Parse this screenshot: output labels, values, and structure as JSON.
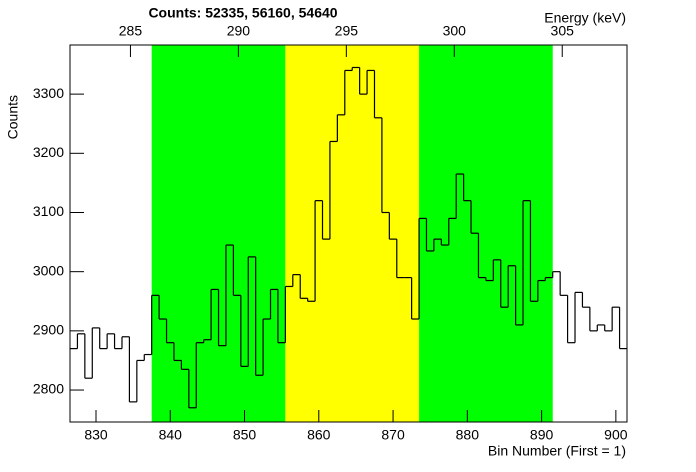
{
  "chart_data": {
    "type": "histogram",
    "title": "Counts:   52335,   56160,   54640",
    "ylabel": "Counts",
    "xlabel": "Bin Number (First = 1)",
    "x2label": "Energy (keV)",
    "bins": [
      826.5,
      827.5,
      828.5,
      829.5,
      830.5,
      831.5,
      832.5,
      833.5,
      834.5,
      835.5,
      836.5,
      837.5,
      838.5,
      839.5,
      840.5,
      841.5,
      842.5,
      843.5,
      844.5,
      845.5,
      846.5,
      847.5,
      848.5,
      849.5,
      850.5,
      851.5,
      852.5,
      853.5,
      854.5,
      855.5,
      856.5,
      857.5,
      858.5,
      859.5,
      860.5,
      861.5,
      862.5,
      863.5,
      864.5,
      865.5,
      866.5,
      867.5,
      868.5,
      869.5,
      870.5,
      871.5,
      872.5,
      873.5,
      874.5,
      875.5,
      876.5,
      877.5,
      878.5,
      879.5,
      880.5,
      881.5,
      882.5,
      883.5,
      884.5,
      885.5,
      886.5,
      887.5,
      888.5,
      889.5,
      890.5,
      891.5,
      892.5,
      893.5,
      894.5,
      895.5,
      896.5,
      897.5,
      898.5,
      899.5,
      900.5,
      901.5
    ],
    "values": [
      2870,
      2895,
      2820,
      2905,
      2870,
      2895,
      2870,
      2890,
      2780,
      2850,
      2860,
      2960,
      2920,
      2880,
      2850,
      2835,
      2770,
      2880,
      2885,
      2970,
      2875,
      3045,
      2960,
      2840,
      3025,
      2825,
      2920,
      2970,
      2880,
      2975,
      2995,
      2955,
      2950,
      3120,
      3055,
      3220,
      3265,
      3340,
      3345,
      3300,
      3340,
      3260,
      3100,
      3055,
      2990,
      2990,
      2920,
      3090,
      3035,
      3055,
      3045,
      3090,
      3165,
      3120,
      3065,
      2990,
      2985,
      3020,
      2940,
      3010,
      2910,
      3120,
      2950,
      2985,
      2990,
      3000,
      2960,
      2880,
      2965,
      2940,
      2900,
      2910,
      2900,
      2940,
      2870
    ],
    "color": "#000000",
    "regions": [
      {
        "x0": 837.5,
        "x1": 855.5,
        "color": "#00ff00"
      },
      {
        "x0": 855.5,
        "x1": 873.5,
        "color": "#ffff00"
      },
      {
        "x0": 873.5,
        "x1": 891.5,
        "color": "#00ff00"
      }
    ],
    "xlim": [
      826.5,
      901.5
    ],
    "xticks": [
      830,
      840,
      850,
      860,
      870,
      880,
      890,
      900
    ],
    "ylim": [
      2746,
      3383
    ],
    "yticks": [
      2800,
      2900,
      3000,
      3100,
      3200,
      3300
    ],
    "x2lim": [
      282.2,
      308.0
    ],
    "x2ticks": [
      285,
      290,
      295,
      300,
      305
    ]
  }
}
